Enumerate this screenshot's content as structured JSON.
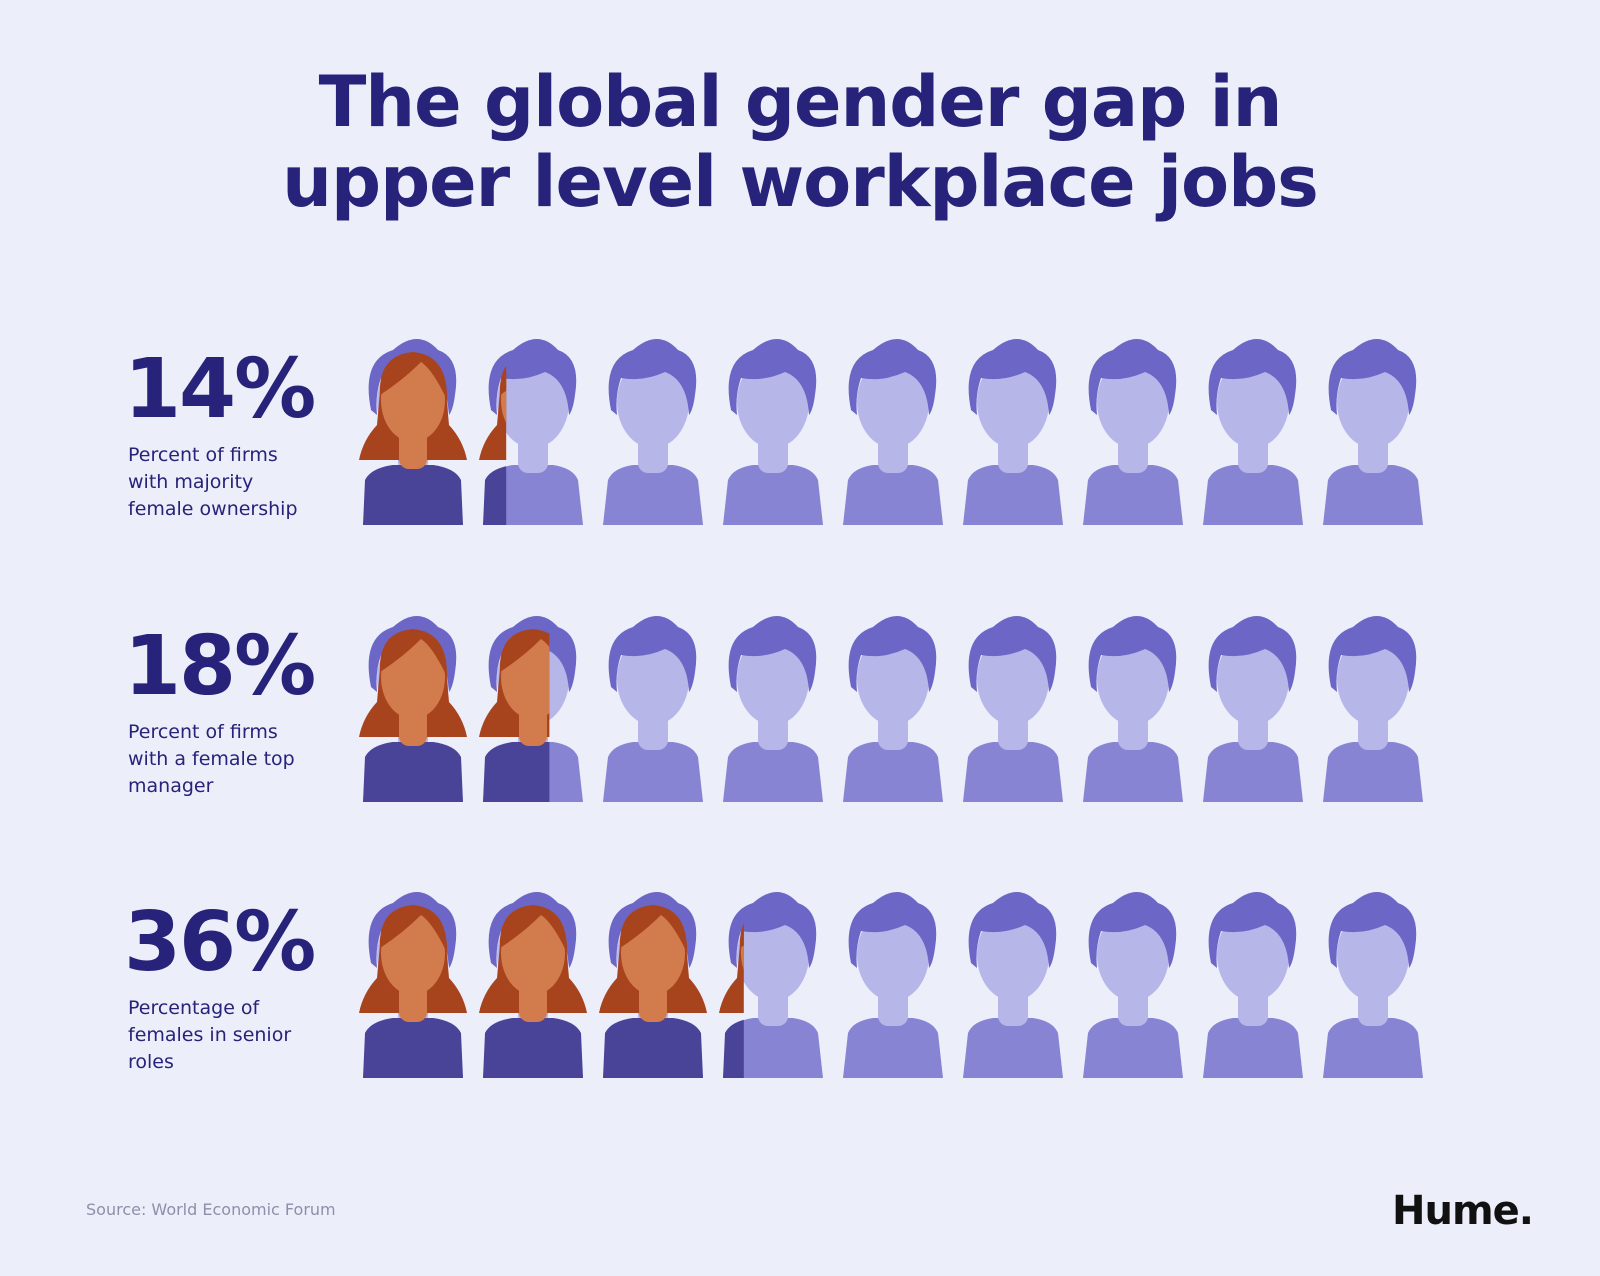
{
  "chart_data": {
    "type": "pictograph",
    "title": "The global gender gap in upper level workplace jobs",
    "categories": [
      "Percent of firms with majority female ownership",
      "Percent of firms with a female top manager",
      "Percentage of females in senior roles"
    ],
    "values": [
      14,
      18,
      36
    ],
    "value_labels": [
      "14%",
      "18%",
      "36%"
    ],
    "xlim": [
      0,
      100
    ]
  },
  "source": "Source: World Economic Forum",
  "brand": "Hume."
}
